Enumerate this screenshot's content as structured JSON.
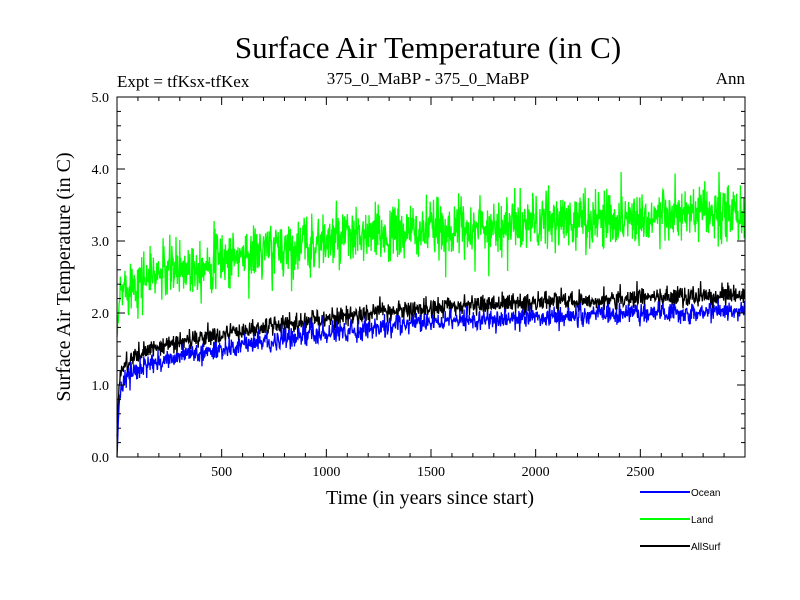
{
  "chart_data": {
    "type": "line",
    "title": "Surface Air Temperature (in C)",
    "subtitle_left": "Expt = tfKsx-tfKex",
    "subtitle_center": "375_0_MaBP - 375_0_MaBP",
    "subtitle_right": "Ann",
    "xlabel": "Time (in years since start)",
    "ylabel": "Surface Air Temperature (in C)",
    "xlim": [
      0,
      3000
    ],
    "ylim": [
      0.0,
      5.0
    ],
    "xticks": [
      500,
      1000,
      1500,
      2000,
      2500
    ],
    "xtick_labels": [
      "500",
      "1000",
      "1500",
      "2000",
      "2500"
    ],
    "yticks": [
      0.0,
      1.0,
      2.0,
      3.0,
      4.0,
      5.0
    ],
    "ytick_labels": [
      "0.0",
      "1.0",
      "2.0",
      "3.0",
      "4.0",
      "5.0"
    ],
    "legend_position": "bottom-right, below plot",
    "series": [
      {
        "name": "Ocean",
        "color": "#0000ff",
        "noise": 0.07,
        "x": [
          0,
          10,
          20,
          50,
          100,
          200,
          300,
          500,
          750,
          1000,
          1250,
          1500,
          1750,
          2000,
          2250,
          2500,
          2750,
          3000
        ],
        "y": [
          0.0,
          0.75,
          0.95,
          1.12,
          1.22,
          1.32,
          1.4,
          1.5,
          1.62,
          1.72,
          1.8,
          1.87,
          1.91,
          1.94,
          1.97,
          2.0,
          2.02,
          2.03
        ]
      },
      {
        "name": "Land",
        "color": "#00ff00",
        "noise": 0.2,
        "x": [
          0,
          10,
          20,
          50,
          100,
          200,
          300,
          500,
          750,
          1000,
          1250,
          1500,
          1750,
          2000,
          2250,
          2500,
          2750,
          3000
        ],
        "y": [
          1.6,
          2.1,
          2.3,
          2.4,
          2.45,
          2.55,
          2.62,
          2.75,
          2.88,
          3.0,
          3.08,
          3.15,
          3.2,
          3.25,
          3.3,
          3.33,
          3.36,
          3.38
        ]
      },
      {
        "name": "AllSurf",
        "color": "#000000",
        "noise": 0.07,
        "x": [
          0,
          10,
          20,
          50,
          100,
          200,
          300,
          500,
          750,
          1000,
          1250,
          1500,
          1750,
          2000,
          2250,
          2500,
          2750,
          3000
        ],
        "y": [
          0.3,
          1.0,
          1.2,
          1.32,
          1.42,
          1.52,
          1.6,
          1.7,
          1.82,
          1.93,
          2.01,
          2.07,
          2.12,
          2.15,
          2.18,
          2.21,
          2.23,
          2.24
        ]
      }
    ]
  }
}
